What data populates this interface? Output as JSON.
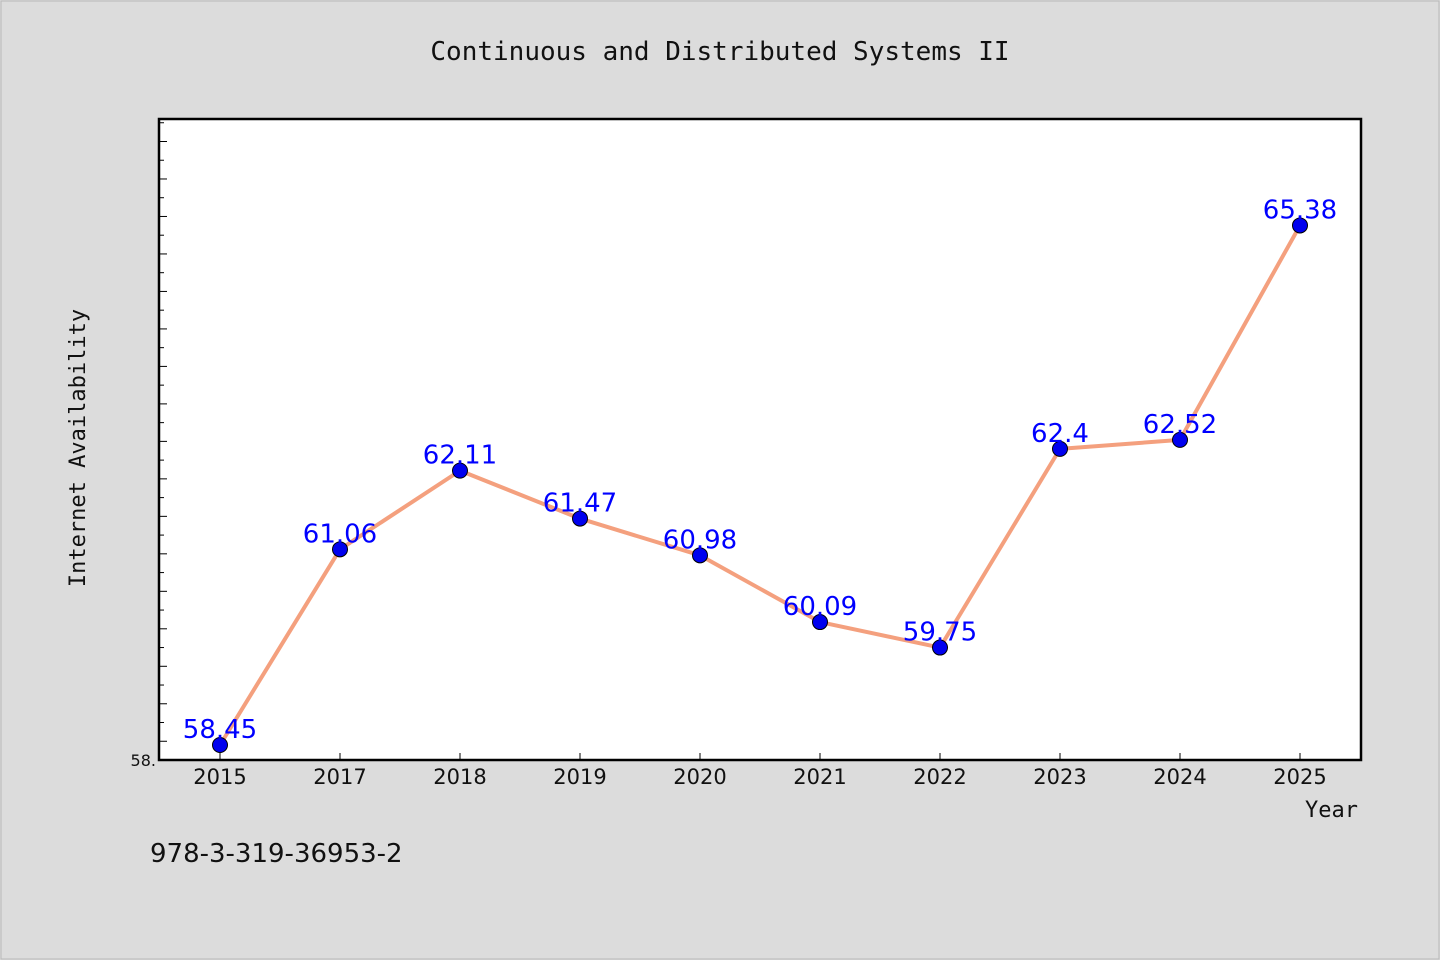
{
  "chart_data": {
    "type": "line",
    "title": "Continuous and Distributed Systems II",
    "xlabel": "Year",
    "ylabel": "Internet Availability",
    "categories": [
      "2015",
      "2017",
      "2018",
      "2019",
      "2020",
      "2021",
      "2022",
      "2023",
      "2024",
      "2025"
    ],
    "series": [
      {
        "values": [
          58.45,
          61.06,
          62.11,
          61.47,
          60.98,
          60.09,
          59.75,
          62.4,
          62.52,
          65.38
        ],
        "data_labels": [
          "58.45",
          "61.06",
          "62.11",
          "61.47",
          "60.98",
          "60.09",
          "59.75",
          "62.4",
          "62.52",
          "65.38"
        ]
      }
    ],
    "ylim": [
      58.25,
      66.8
    ],
    "y_tick_label": "58.",
    "grid": false,
    "colors": {
      "line": "#f4a07e",
      "marker": "#0000ee",
      "marker_edge": "#000000",
      "label": "#0000ff",
      "page_bg": "#dcdcdc",
      "plot_bg": "#ffffff"
    }
  },
  "footer": {
    "isbn": "978-3-319-36953-2"
  }
}
